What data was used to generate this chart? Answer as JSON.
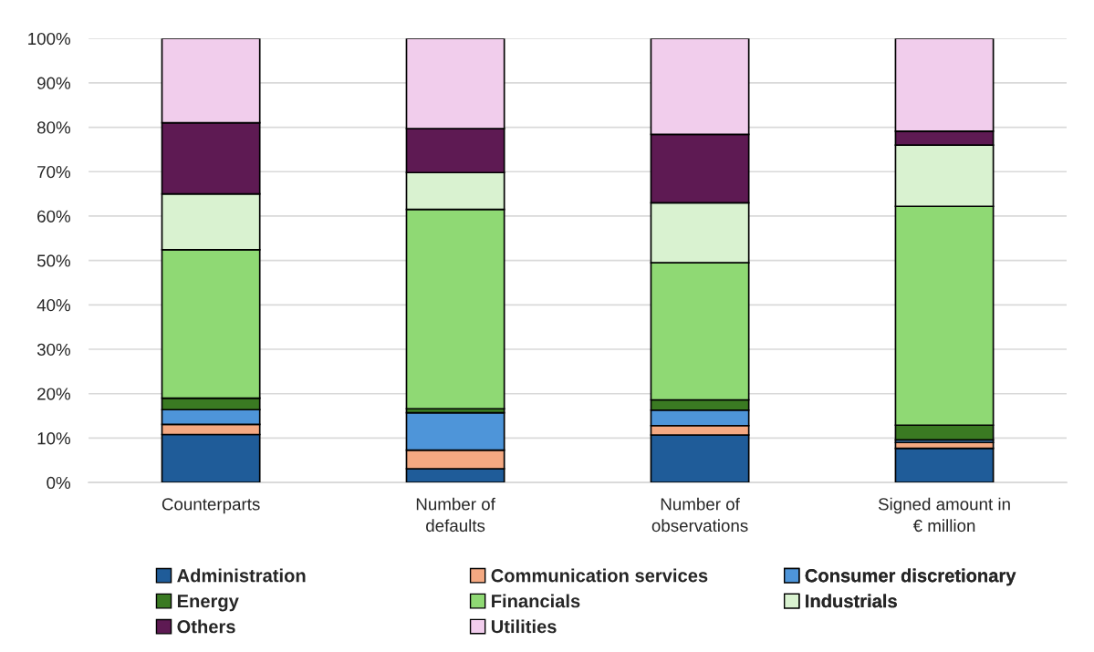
{
  "chart_data": {
    "type": "bar",
    "stacked": true,
    "categories": [
      "Counterparts",
      "Number of\ndefaults",
      "Number of\nobservations",
      "Signed amount in\n€ million"
    ],
    "series": [
      {
        "name": "Administration",
        "color": "#1f5c99",
        "values": [
          10.8,
          3.1,
          10.7,
          7.7
        ]
      },
      {
        "name": "Communication services",
        "color": "#f4a982",
        "values": [
          2.3,
          4.2,
          2.1,
          1.3
        ]
      },
      {
        "name": "Consumer discretionary",
        "color": "#4e95d9",
        "values": [
          3.3,
          8.4,
          3.5,
          0.6
        ]
      },
      {
        "name": "Energy",
        "color": "#3a7a22",
        "values": [
          2.6,
          0.9,
          2.3,
          3.3
        ]
      },
      {
        "name": "Financials",
        "color": "#8fd974",
        "values": [
          33.4,
          44.9,
          30.9,
          49.3
        ]
      },
      {
        "name": "Industrials",
        "color": "#d9f2d0",
        "values": [
          12.6,
          8.3,
          13.5,
          13.8
        ]
      },
      {
        "name": "Others",
        "color": "#5e1a53",
        "values": [
          16.0,
          9.9,
          15.4,
          3.1
        ]
      },
      {
        "name": "Utilities",
        "color": "#f1cdec",
        "values": [
          19.0,
          20.3,
          21.6,
          20.9
        ]
      }
    ],
    "ylim": [
      0,
      100
    ],
    "yticks": [
      {
        "value": 0,
        "label": "0%"
      },
      {
        "value": 10,
        "label": "10%"
      },
      {
        "value": 20,
        "label": "20%"
      },
      {
        "value": 30,
        "label": "30%"
      },
      {
        "value": 40,
        "label": "40%"
      },
      {
        "value": 50,
        "label": "50%"
      },
      {
        "value": 60,
        "label": "60%"
      },
      {
        "value": 70,
        "label": "70%"
      },
      {
        "value": 80,
        "label": "80%"
      },
      {
        "value": 90,
        "label": "90%"
      },
      {
        "value": 100,
        "label": "100%"
      }
    ],
    "grid": "y",
    "legend": "bottom"
  }
}
